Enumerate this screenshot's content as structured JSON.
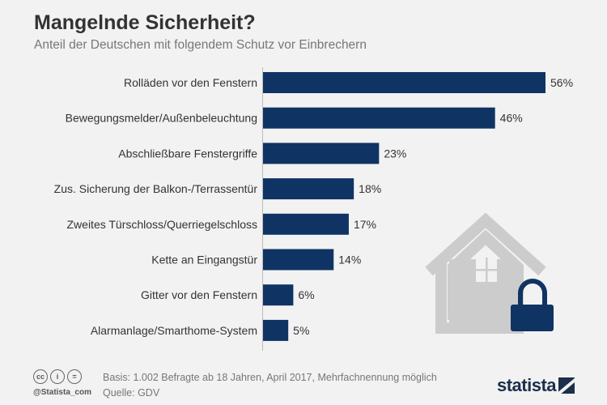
{
  "header": {
    "title": "Mangelnde Sicherheit?",
    "subtitle": "Anteil der Deutschen mit folgendem Schutz vor Einbrechern"
  },
  "chart_data": {
    "type": "bar",
    "orientation": "horizontal",
    "categories": [
      "Rolläden vor den Fenstern",
      "Bewegungsmelder/Außenbeleuchtung",
      "Abschließbare Fenstergriffe",
      "Zus. Sicherung der Balkon-/Terrassentür",
      "Zweites Türschloss/Querriegelschloss",
      "Kette an Eingangstür",
      "Gitter vor den Fenstern",
      "Alarmanlage/Smarthome-System"
    ],
    "values": [
      56,
      46,
      23,
      18,
      17,
      14,
      6,
      5
    ],
    "value_labels": [
      "56%",
      "46%",
      "23%",
      "18%",
      "17%",
      "14%",
      "6%",
      "5%"
    ],
    "unit": "%",
    "bar_color": "#0f3464",
    "title": "Mangelnde Sicherheit?",
    "subtitle": "Anteil der Deutschen mit folgendem Schutz vor Einbrechern",
    "grid": false,
    "legend": "none"
  },
  "illustration": {
    "icon": "house-with-padlock-icon",
    "house_color": "#cccccc",
    "lock_color": "#0f3464"
  },
  "footer": {
    "license_icons": [
      "cc-icon",
      "by-icon",
      "nd-icon"
    ],
    "license_glyphs": [
      "cc",
      "i",
      "="
    ],
    "handle": "@Statista_com",
    "basis": "Basis: 1.002 Befragte ab 18 Jahren, April 2017, Mehrfachnennung möglich",
    "source": "Quelle: GDV",
    "brand": "statista"
  }
}
